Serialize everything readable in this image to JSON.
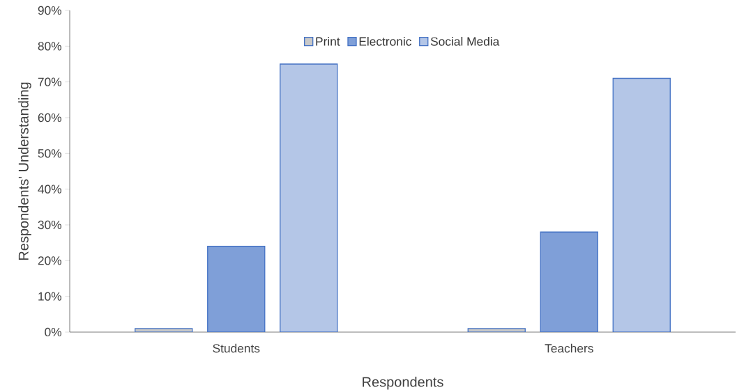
{
  "chart_data": {
    "type": "bar",
    "xlabel": "Respondents",
    "ylabel": "Respondents' Understanding",
    "categories": [
      "Students",
      "Teachers"
    ],
    "series": [
      {
        "name": "Print",
        "color": "#c9c9c9",
        "values": [
          1,
          1
        ]
      },
      {
        "name": "Electronic",
        "color": "#7f9fd8",
        "values": [
          24,
          28
        ]
      },
      {
        "name": "Social Media",
        "color": "#b4c6e7",
        "values": [
          75,
          71
        ]
      }
    ],
    "ylim": [
      0,
      90
    ],
    "yticks": [
      {
        "value": 0,
        "label": "0%"
      },
      {
        "value": 10,
        "label": "10%"
      },
      {
        "value": 20,
        "label": "20%"
      },
      {
        "value": 30,
        "label": "30%"
      },
      {
        "value": 40,
        "label": "40%"
      },
      {
        "value": 50,
        "label": "50%"
      },
      {
        "value": 60,
        "label": "60%"
      },
      {
        "value": 70,
        "label": "70%"
      },
      {
        "value": 80,
        "label": "80%"
      },
      {
        "value": 90,
        "label": "90%"
      }
    ],
    "grid": false,
    "legend": "top"
  }
}
